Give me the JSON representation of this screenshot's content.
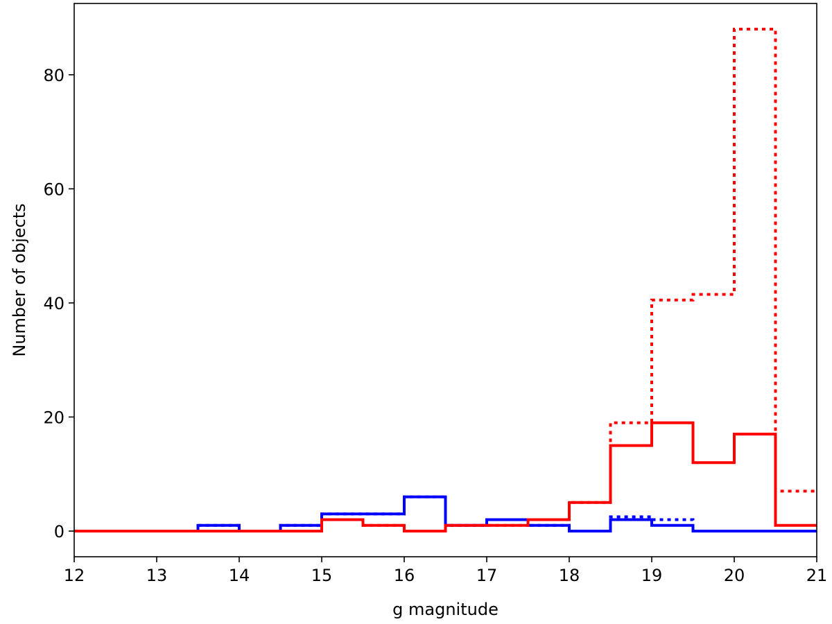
{
  "chart_data": {
    "type": "step-histogram",
    "title": "",
    "xlabel": "g magnitude",
    "ylabel": "Number of objects",
    "xlim": [
      12,
      21
    ],
    "ylim": [
      -4.5,
      92.5
    ],
    "xticks": [
      12,
      13,
      14,
      15,
      16,
      17,
      18,
      19,
      20,
      21
    ],
    "yticks": [
      0,
      20,
      40,
      60,
      80
    ],
    "grid": false,
    "legend": "none",
    "bin_edges": [
      12,
      12.5,
      13,
      13.5,
      14,
      14.5,
      15,
      15.5,
      16,
      16.5,
      17,
      17.5,
      18,
      18.5,
      19,
      19.5,
      20,
      20.5,
      21
    ],
    "series": [
      {
        "color": "#0000ff",
        "style": "solid",
        "values": [
          0,
          0,
          0,
          1,
          0,
          1,
          3,
          3,
          6,
          1,
          2,
          1,
          0,
          2,
          1,
          0,
          0,
          0
        ]
      },
      {
        "color": "#0000ff",
        "style": "dotted",
        "values": [
          0,
          0,
          0,
          1,
          0,
          1,
          3,
          3,
          6,
          1,
          2,
          1,
          0,
          2.5,
          2,
          0,
          0,
          0
        ]
      },
      {
        "color": "#ff0000",
        "style": "dotted",
        "values": [
          0,
          0,
          0,
          0,
          0,
          0,
          2,
          1,
          0,
          1,
          1,
          2,
          5,
          19,
          40.5,
          41.5,
          88,
          7
        ]
      },
      {
        "color": "#ff0000",
        "style": "solid",
        "values": [
          0,
          0,
          0,
          0,
          0,
          0,
          2,
          1,
          0,
          1,
          1,
          2,
          5,
          15,
          19,
          12,
          17,
          1
        ]
      }
    ]
  }
}
